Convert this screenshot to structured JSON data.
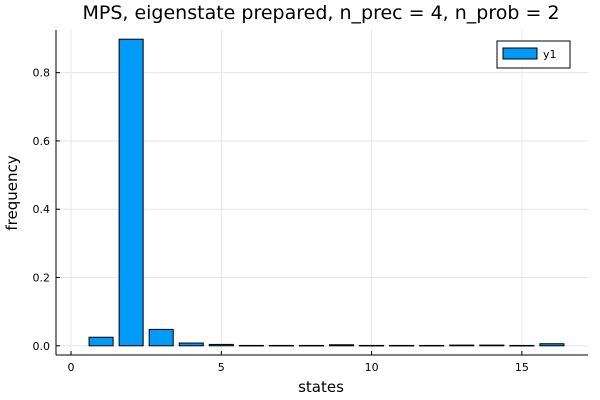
{
  "chart_data": {
    "type": "bar",
    "title": "MPS, eigenstate prepared, n_prec = 4, n_prob = 2",
    "xlabel": "states",
    "ylabel": "frequency",
    "x": [
      1,
      2,
      3,
      4,
      5,
      6,
      7,
      8,
      9,
      10,
      11,
      12,
      13,
      14,
      15,
      16
    ],
    "series": [
      {
        "name": "y1",
        "values": [
          0.025,
          0.898,
          0.048,
          0.008,
          0.004,
          0.001,
          0.001,
          0.001,
          0.003,
          0.001,
          0.001,
          0.001,
          0.002,
          0.002,
          0.001,
          0.006
        ]
      }
    ],
    "xlim": [
      -0.5,
      17.2
    ],
    "ylim": [
      -0.027,
      0.925
    ],
    "xticks": [
      0,
      5,
      10,
      15
    ],
    "xtick_labels": [
      "0",
      "5",
      "10",
      "15"
    ],
    "yticks": [
      0.0,
      0.2,
      0.4,
      0.6,
      0.8
    ],
    "ytick_labels": [
      "0.0",
      "0.2",
      "0.4",
      "0.6",
      "0.8"
    ],
    "bar_color": "#009af9",
    "grid": true,
    "legend_position": "top-right"
  }
}
